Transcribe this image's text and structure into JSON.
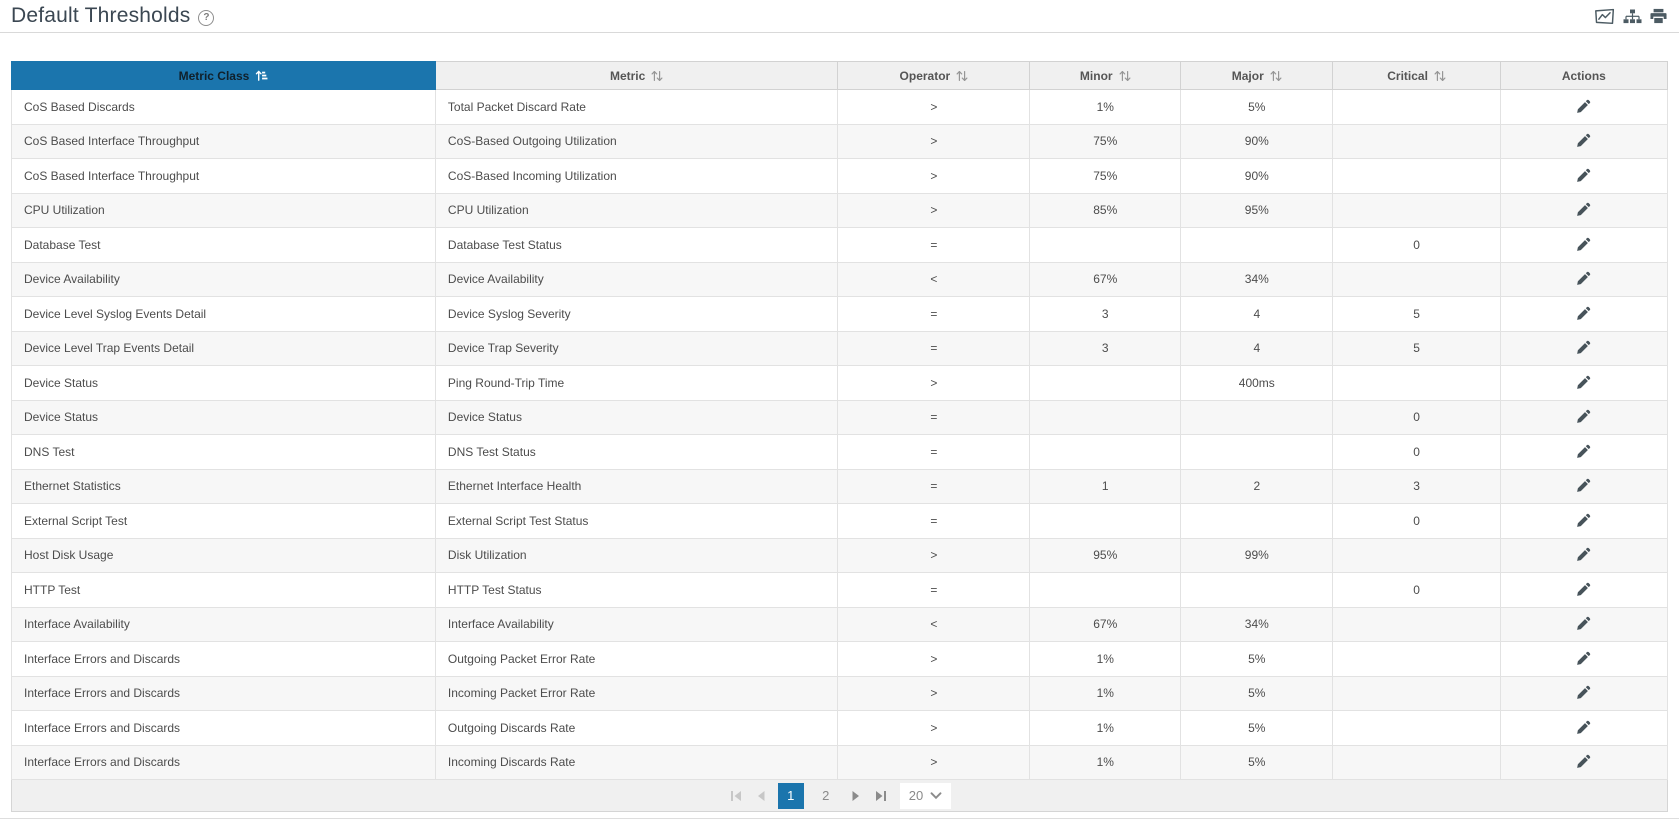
{
  "header": {
    "title": "Default Thresholds",
    "help_icon": "?",
    "toolbar_icons": [
      {
        "name": "email-graph-icon"
      },
      {
        "name": "sitemap-icon"
      },
      {
        "name": "print-icon"
      }
    ]
  },
  "colors": {
    "accent_blue": "#1b75ad",
    "header_gray": "#f0f0f0",
    "zebra_row": "#f7f7f7",
    "icon_gray": "#4c5b63"
  },
  "table": {
    "columns": [
      {
        "label": "Metric Class",
        "sorted": "asc",
        "sortable": true
      },
      {
        "label": "Metric",
        "sortable": true
      },
      {
        "label": "Operator",
        "sortable": true
      },
      {
        "label": "Minor",
        "sortable": true
      },
      {
        "label": "Major",
        "sortable": true
      },
      {
        "label": "Critical",
        "sortable": true
      },
      {
        "label": "Actions",
        "sortable": false
      }
    ],
    "rows": [
      {
        "metric_class": "CoS Based Discards",
        "metric": "Total Packet Discard Rate",
        "operator": ">",
        "minor": "1%",
        "major": "5%",
        "critical": ""
      },
      {
        "metric_class": "CoS Based Interface Throughput",
        "metric": "CoS-Based Outgoing Utilization",
        "operator": ">",
        "minor": "75%",
        "major": "90%",
        "critical": ""
      },
      {
        "metric_class": "CoS Based Interface Throughput",
        "metric": "CoS-Based Incoming Utilization",
        "operator": ">",
        "minor": "75%",
        "major": "90%",
        "critical": ""
      },
      {
        "metric_class": "CPU Utilization",
        "metric": "CPU Utilization",
        "operator": ">",
        "minor": "85%",
        "major": "95%",
        "critical": ""
      },
      {
        "metric_class": "Database Test",
        "metric": "Database Test Status",
        "operator": "=",
        "minor": "",
        "major": "",
        "critical": "0"
      },
      {
        "metric_class": "Device Availability",
        "metric": "Device Availability",
        "operator": "<",
        "minor": "67%",
        "major": "34%",
        "critical": ""
      },
      {
        "metric_class": "Device Level Syslog Events Detail",
        "metric": "Device Syslog Severity",
        "operator": "=",
        "minor": "3",
        "major": "4",
        "critical": "5"
      },
      {
        "metric_class": "Device Level Trap Events Detail",
        "metric": "Device Trap Severity",
        "operator": "=",
        "minor": "3",
        "major": "4",
        "critical": "5"
      },
      {
        "metric_class": "Device Status",
        "metric": "Ping Round-Trip Time",
        "operator": ">",
        "minor": "",
        "major": "400ms",
        "critical": ""
      },
      {
        "metric_class": "Device Status",
        "metric": "Device Status",
        "operator": "=",
        "minor": "",
        "major": "",
        "critical": "0"
      },
      {
        "metric_class": "DNS Test",
        "metric": "DNS Test Status",
        "operator": "=",
        "minor": "",
        "major": "",
        "critical": "0"
      },
      {
        "metric_class": "Ethernet Statistics",
        "metric": "Ethernet Interface Health",
        "operator": "=",
        "minor": "1",
        "major": "2",
        "critical": "3"
      },
      {
        "metric_class": "External Script Test",
        "metric": "External Script Test Status",
        "operator": "=",
        "minor": "",
        "major": "",
        "critical": "0"
      },
      {
        "metric_class": "Host Disk Usage",
        "metric": "Disk Utilization",
        "operator": ">",
        "minor": "95%",
        "major": "99%",
        "critical": ""
      },
      {
        "metric_class": "HTTP Test",
        "metric": "HTTP Test Status",
        "operator": "=",
        "minor": "",
        "major": "",
        "critical": "0"
      },
      {
        "metric_class": "Interface Availability",
        "metric": "Interface Availability",
        "operator": "<",
        "minor": "67%",
        "major": "34%",
        "critical": ""
      },
      {
        "metric_class": "Interface Errors and Discards",
        "metric": "Outgoing Packet Error Rate",
        "operator": ">",
        "minor": "1%",
        "major": "5%",
        "critical": ""
      },
      {
        "metric_class": "Interface Errors and Discards",
        "metric": "Incoming Packet Error Rate",
        "operator": ">",
        "minor": "1%",
        "major": "5%",
        "critical": ""
      },
      {
        "metric_class": "Interface Errors and Discards",
        "metric": "Outgoing Discards Rate",
        "operator": ">",
        "minor": "1%",
        "major": "5%",
        "critical": ""
      },
      {
        "metric_class": "Interface Errors and Discards",
        "metric": "Incoming Discards Rate",
        "operator": ">",
        "minor": "1%",
        "major": "5%",
        "critical": ""
      }
    ],
    "row_action_icon": "edit-pencil-icon"
  },
  "pagination": {
    "controls": [
      {
        "name": "first-page-button",
        "icon": "first-page-icon",
        "disabled": true
      },
      {
        "name": "prev-page-button",
        "icon": "prev-page-icon",
        "disabled": true
      },
      {
        "name": "page-button-1",
        "label": "1",
        "active": true
      },
      {
        "name": "page-button-2",
        "label": "2",
        "active": false
      },
      {
        "name": "next-page-button",
        "icon": "next-page-icon",
        "disabled": false
      },
      {
        "name": "last-page-button",
        "icon": "last-page-icon",
        "disabled": false
      }
    ],
    "page_size": "20"
  }
}
